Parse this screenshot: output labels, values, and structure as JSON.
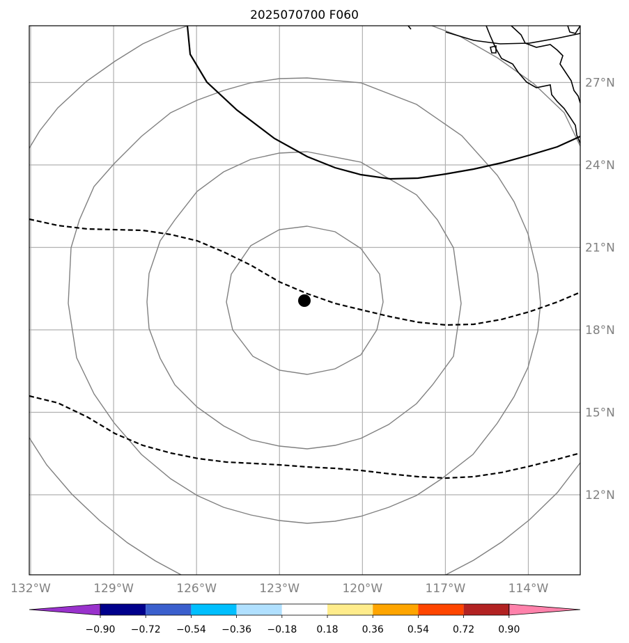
{
  "title": "2025070700 F060",
  "map": {
    "lat_labels": [
      "27°N",
      "24°N",
      "21°N",
      "18°N",
      "15°N",
      "12°N"
    ],
    "lon_labels": [
      "132°W",
      "129°W",
      "126°W",
      "123°W",
      "120°W",
      "117°W",
      "114°W"
    ],
    "grid_lats": [
      27,
      24,
      21,
      18,
      15,
      12
    ],
    "grid_lons": [
      -132,
      -129,
      -126,
      -123,
      -120,
      -117,
      -114
    ],
    "center_marker": {
      "lon": -122.1,
      "lat": 19.0
    },
    "range_ring_color": "#808080",
    "gridline_color": "#b0b0b0",
    "coastline_color": "#000000"
  },
  "colorbar": {
    "levels": [
      "−0.90",
      "−0.72",
      "−0.54",
      "−0.36",
      "−0.18",
      "0.18",
      "0.36",
      "0.54",
      "0.72",
      "0.90"
    ],
    "colors": [
      "#9932cc",
      "#00008b",
      "#3a5fcd",
      "#00bfff",
      "#b0e0ff",
      "#ffffff",
      "#ffec8b",
      "#ffa500",
      "#ff4500",
      "#b22222",
      "#ff82ab"
    ]
  }
}
